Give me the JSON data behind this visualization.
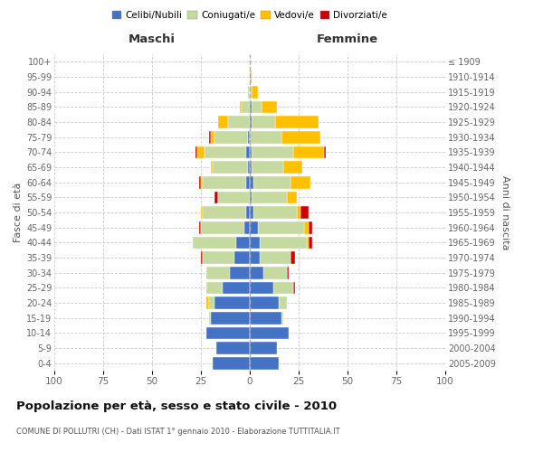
{
  "age_groups": [
    "0-4",
    "5-9",
    "10-14",
    "15-19",
    "20-24",
    "25-29",
    "30-34",
    "35-39",
    "40-44",
    "45-49",
    "50-54",
    "55-59",
    "60-64",
    "65-69",
    "70-74",
    "75-79",
    "80-84",
    "85-89",
    "90-94",
    "95-99",
    "100+"
  ],
  "birth_years": [
    "2005-2009",
    "2000-2004",
    "1995-1999",
    "1990-1994",
    "1985-1989",
    "1980-1984",
    "1975-1979",
    "1970-1974",
    "1965-1969",
    "1960-1964",
    "1955-1959",
    "1950-1954",
    "1945-1949",
    "1940-1944",
    "1935-1939",
    "1930-1934",
    "1925-1929",
    "1920-1924",
    "1915-1919",
    "1910-1914",
    "≤ 1909"
  ],
  "colors": {
    "celibe": "#4472C4",
    "coniugato": "#c5d9a0",
    "vedovo": "#ffc000",
    "divorziato": "#cc0000"
  },
  "maschi": {
    "celibe": [
      19,
      17,
      22,
      20,
      18,
      14,
      10,
      8,
      7,
      3,
      2,
      0,
      2,
      1,
      2,
      1,
      0,
      0,
      0,
      0,
      0
    ],
    "coniugato": [
      0,
      0,
      0,
      1,
      3,
      8,
      12,
      16,
      22,
      22,
      22,
      16,
      22,
      18,
      21,
      17,
      11,
      4,
      1,
      0,
      0
    ],
    "vedovo": [
      0,
      0,
      0,
      0,
      1,
      0,
      0,
      0,
      0,
      0,
      1,
      0,
      1,
      1,
      4,
      2,
      5,
      1,
      0,
      0,
      0
    ],
    "divorziato": [
      0,
      0,
      0,
      0,
      0,
      0,
      0,
      1,
      0,
      1,
      0,
      2,
      1,
      0,
      1,
      1,
      0,
      0,
      0,
      0,
      0
    ]
  },
  "femmine": {
    "nubile": [
      15,
      14,
      20,
      16,
      15,
      12,
      7,
      5,
      5,
      4,
      2,
      1,
      2,
      1,
      1,
      0,
      1,
      1,
      0,
      0,
      0
    ],
    "coniugata": [
      0,
      0,
      0,
      1,
      4,
      10,
      12,
      16,
      24,
      24,
      22,
      18,
      19,
      16,
      21,
      16,
      12,
      5,
      1,
      0,
      0
    ],
    "vedova": [
      0,
      0,
      0,
      0,
      0,
      0,
      0,
      0,
      1,
      2,
      2,
      5,
      10,
      10,
      16,
      20,
      22,
      8,
      3,
      1,
      0
    ],
    "divorziata": [
      0,
      0,
      0,
      0,
      0,
      1,
      1,
      2,
      2,
      2,
      4,
      0,
      0,
      0,
      1,
      0,
      0,
      0,
      0,
      0,
      0
    ]
  },
  "title": "Popolazione per età, sesso e stato civile - 2010",
  "subtitle": "COMUNE DI POLLUTRI (CH) - Dati ISTAT 1° gennaio 2010 - Elaborazione TUTTITALIA.IT",
  "xlabel_maschi": "Maschi",
  "xlabel_femmine": "Femmine",
  "ylabel_left": "Fasce di età",
  "ylabel_right": "Anni di nascita",
  "xlim": 100,
  "background_color": "#ffffff",
  "grid_color": "#cccccc"
}
